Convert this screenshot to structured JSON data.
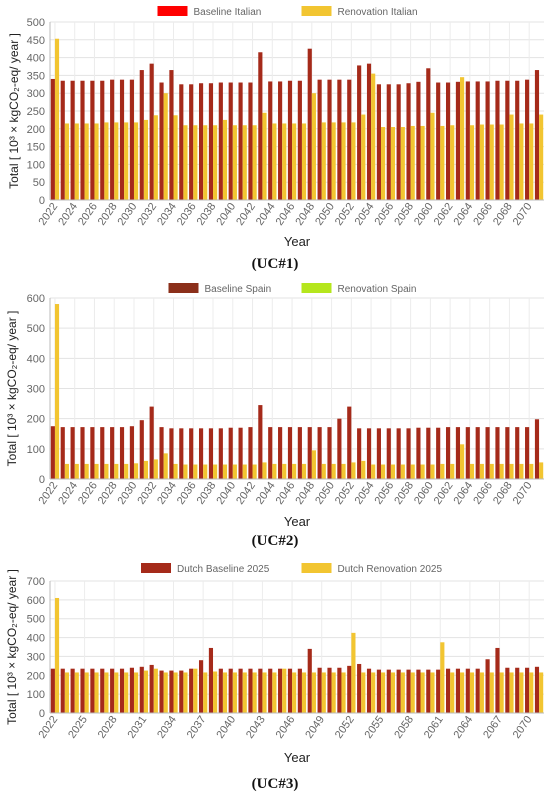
{
  "panels": [
    {
      "caption": "(UC#1)",
      "chart_data": {
        "type": "bar",
        "xlabel": "Year",
        "ylabel": "Total [ 10³ × kgCO₂-eq/ year ]",
        "ylim": [
          0,
          500
        ],
        "yticks": [
          0,
          50,
          100,
          150,
          200,
          250,
          300,
          350,
          400,
          450,
          500
        ],
        "legend": "top-center",
        "grid": true,
        "categories": [
          "2022",
          "2023",
          "2024",
          "2025",
          "2026",
          "2027",
          "2028",
          "2029",
          "2030",
          "2031",
          "2032",
          "2033",
          "2034",
          "2035",
          "2036",
          "2037",
          "2038",
          "2039",
          "2040",
          "2041",
          "2042",
          "2043",
          "2044",
          "2045",
          "2046",
          "2047",
          "2048",
          "2049",
          "2050",
          "2051",
          "2052",
          "2053",
          "2054",
          "2055",
          "2056",
          "2057",
          "2058",
          "2059",
          "2060",
          "2061",
          "2062",
          "2063",
          "2064",
          "2065",
          "2066",
          "2067",
          "2068",
          "2069",
          "2070",
          "2071"
        ],
        "tick_labels": [
          "2022",
          "2024",
          "2026",
          "2028",
          "2030",
          "2032",
          "2034",
          "2036",
          "2038",
          "2040",
          "2042",
          "2044",
          "2046",
          "2048",
          "2050",
          "2052",
          "2054",
          "2056",
          "2058",
          "2060",
          "2062",
          "2064",
          "2066",
          "2068",
          "2070"
        ],
        "series": [
          {
            "name": "Baseline Italian",
            "color": "#ff0000",
            "bar_color": "#a52a1a",
            "values": [
              340,
              335,
              335,
              335,
              335,
              335,
              338,
              338,
              338,
              365,
              383,
              330,
              365,
              325,
              325,
              328,
              328,
              330,
              330,
              330,
              330,
              415,
              333,
              333,
              335,
              335,
              425,
              338,
              338,
              338,
              338,
              378,
              383,
              325,
              325,
              325,
              328,
              332,
              370,
              330,
              330,
              332,
              333,
              333,
              333,
              335,
              335,
              335,
              338,
              365
            ]
          },
          {
            "name": "Renovation Italian",
            "color": "#f2c531",
            "bar_color": "#f2c531",
            "values": [
              453,
              215,
              215,
              215,
              215,
              218,
              218,
              218,
              218,
              225,
              238,
              300,
              238,
              210,
              210,
              210,
              210,
              225,
              210,
              210,
              210,
              245,
              215,
              215,
              215,
              215,
              300,
              218,
              218,
              218,
              218,
              240,
              355,
              205,
              205,
              205,
              208,
              208,
              245,
              208,
              210,
              345,
              210,
              212,
              212,
              212,
              240,
              215,
              215,
              240
            ]
          }
        ]
      }
    },
    {
      "caption": "(UC#2)",
      "chart_data": {
        "type": "bar",
        "xlabel": "Year",
        "ylabel": "Total [ 10³ × kgCO₂-eq/ year ]",
        "ylim": [
          0,
          600
        ],
        "yticks": [
          0,
          100,
          200,
          300,
          400,
          500,
          600
        ],
        "legend": "top-center",
        "grid": true,
        "categories": [
          "2022",
          "2023",
          "2024",
          "2025",
          "2026",
          "2027",
          "2028",
          "2029",
          "2030",
          "2031",
          "2032",
          "2033",
          "2034",
          "2035",
          "2036",
          "2037",
          "2038",
          "2039",
          "2040",
          "2041",
          "2042",
          "2043",
          "2044",
          "2045",
          "2046",
          "2047",
          "2048",
          "2049",
          "2050",
          "2051",
          "2052",
          "2053",
          "2054",
          "2055",
          "2056",
          "2057",
          "2058",
          "2059",
          "2060",
          "2061",
          "2062",
          "2063",
          "2064",
          "2065",
          "2066",
          "2067",
          "2068",
          "2069",
          "2070",
          "2071"
        ],
        "tick_labels": [
          "2022",
          "2024",
          "2026",
          "2028",
          "2030",
          "2032",
          "2034",
          "2036",
          "2038",
          "2040",
          "2042",
          "2044",
          "2046",
          "2048",
          "2050",
          "2052",
          "2054",
          "2056",
          "2058",
          "2060",
          "2062",
          "2064",
          "2066",
          "2068",
          "2070"
        ],
        "series": [
          {
            "name": "Baseline Spain",
            "color": "#8b2f1a",
            "bar_color": "#a52a1a",
            "values": [
              175,
              172,
              172,
              172,
              172,
              172,
              172,
              172,
              175,
              195,
              240,
              172,
              168,
              168,
              168,
              168,
              168,
              168,
              170,
              170,
              172,
              245,
              172,
              172,
              172,
              172,
              172,
              172,
              172,
              200,
              240,
              168,
              168,
              168,
              168,
              168,
              168,
              170,
              170,
              170,
              172,
              172,
              172,
              172,
              172,
              172,
              172,
              172,
              172,
              198
            ]
          },
          {
            "name": "Renovation Spain",
            "color": "#b5e61d",
            "bar_color": "#f2c531",
            "values": [
              580,
              50,
              50,
              50,
              50,
              50,
              50,
              50,
              52,
              60,
              65,
              85,
              50,
              48,
              48,
              48,
              48,
              48,
              48,
              48,
              48,
              55,
              50,
              50,
              50,
              50,
              95,
              50,
              50,
              50,
              55,
              60,
              48,
              48,
              48,
              48,
              48,
              48,
              48,
              50,
              50,
              115,
              50,
              50,
              50,
              50,
              50,
              50,
              50,
              55
            ]
          }
        ]
      }
    },
    {
      "caption": "(UC#3)",
      "chart_data": {
        "type": "bar",
        "xlabel": "Year",
        "ylabel": "Total [ 10³ × kgCO₂-eq/ year ]",
        "ylim": [
          0,
          700
        ],
        "yticks": [
          0,
          100,
          200,
          300,
          400,
          500,
          600,
          700
        ],
        "legend": "top-center",
        "grid": true,
        "categories": [
          "2022",
          "2023",
          "2024",
          "2025",
          "2026",
          "2027",
          "2028",
          "2029",
          "2030",
          "2031",
          "2032",
          "2033",
          "2034",
          "2035",
          "2036",
          "2037",
          "2038",
          "2039",
          "2040",
          "2041",
          "2042",
          "2043",
          "2044",
          "2045",
          "2046",
          "2047",
          "2048",
          "2049",
          "2050",
          "2051",
          "2052",
          "2053",
          "2054",
          "2055",
          "2056",
          "2057",
          "2058",
          "2059",
          "2060",
          "2061",
          "2062",
          "2063",
          "2064",
          "2065",
          "2066",
          "2067",
          "2068",
          "2069",
          "2070",
          "2071"
        ],
        "tick_labels": [
          "2022",
          "2025",
          "2028",
          "2031",
          "2034",
          "2037",
          "2040",
          "2043",
          "2046",
          "2049",
          "2052",
          "2055",
          "2058",
          "2061",
          "2064",
          "2067",
          "2070"
        ],
        "series": [
          {
            "name": "Dutch Baseline 2025",
            "color": "#a52a1a",
            "bar_color": "#a52a1a",
            "values": [
              235,
              235,
              235,
              235,
              235,
              235,
              235,
              235,
              240,
              245,
              255,
              225,
              225,
              225,
              235,
              280,
              345,
              235,
              235,
              235,
              235,
              235,
              235,
              235,
              235,
              235,
              340,
              240,
              240,
              240,
              250,
              260,
              235,
              230,
              230,
              230,
              230,
              230,
              230,
              230,
              235,
              235,
              235,
              235,
              285,
              345,
              240,
              240,
              240,
              245
            ]
          },
          {
            "name": "Dutch Renovation 2025",
            "color": "#f2c531",
            "bar_color": "#f2c531",
            "values": [
              610,
              215,
              215,
              215,
              215,
              215,
              215,
              215,
              215,
              225,
              235,
              215,
              215,
              215,
              235,
              215,
              220,
              215,
              215,
              215,
              215,
              215,
              215,
              235,
              215,
              215,
              215,
              215,
              215,
              215,
              425,
              215,
              215,
              215,
              215,
              215,
              215,
              215,
              215,
              375,
              215,
              215,
              215,
              215,
              215,
              215,
              215,
              215,
              215,
              215
            ]
          }
        ]
      }
    }
  ]
}
